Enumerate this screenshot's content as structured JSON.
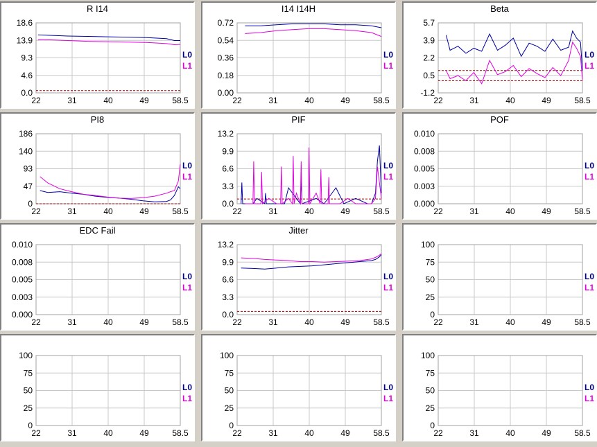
{
  "legend_labels": [
    "L0",
    "L1"
  ],
  "colors": {
    "L0": "#0000a0",
    "L1": "#e000e0",
    "threshold": "#a00000",
    "grid": "#c8c8c8"
  },
  "chart_data": [
    {
      "type": "line",
      "title": "R I14",
      "x_ticks": [
        "22",
        "31",
        "40",
        "49",
        "58.5"
      ],
      "xlim": [
        22,
        58.5
      ],
      "y_ticks": [
        "0.0",
        "4.6",
        "9.3",
        "13.9",
        "18.6"
      ],
      "ylim": [
        0,
        18.6
      ],
      "threshold": 0.6,
      "series": [
        {
          "name": "L0",
          "x": [
            22.5,
            25,
            30,
            35,
            40,
            45,
            50,
            55,
            57,
            58.5
          ],
          "y": [
            15.4,
            15.3,
            15.1,
            15.0,
            14.9,
            14.8,
            14.7,
            14.4,
            13.9,
            13.9
          ]
        },
        {
          "name": "L1",
          "x": [
            22.5,
            25,
            30,
            35,
            40,
            45,
            50,
            55,
            57,
            58.5
          ],
          "y": [
            14.2,
            14.1,
            13.9,
            13.7,
            13.6,
            13.5,
            13.4,
            13.1,
            12.8,
            12.9
          ]
        }
      ]
    },
    {
      "type": "line",
      "title": "I14 I14H",
      "x_ticks": [
        "22",
        "31",
        "40",
        "49",
        "58.5"
      ],
      "xlim": [
        22,
        58.5
      ],
      "y_ticks": [
        "0.00",
        "0.18",
        "0.36",
        "0.54",
        "0.72"
      ],
      "ylim": [
        0,
        0.72
      ],
      "threshold": null,
      "series": [
        {
          "name": "L0",
          "x": [
            24,
            28,
            32,
            36,
            40,
            44,
            48,
            52,
            56,
            58.5
          ],
          "y": [
            0.69,
            0.69,
            0.7,
            0.71,
            0.71,
            0.71,
            0.7,
            0.7,
            0.69,
            0.67
          ]
        },
        {
          "name": "L1",
          "x": [
            24,
            28,
            32,
            36,
            40,
            44,
            48,
            52,
            56,
            58.5
          ],
          "y": [
            0.61,
            0.62,
            0.64,
            0.65,
            0.66,
            0.66,
            0.65,
            0.64,
            0.62,
            0.58
          ]
        }
      ]
    },
    {
      "type": "line",
      "title": "Beta",
      "x_ticks": [
        "22",
        "31",
        "40",
        "49",
        "58.5"
      ],
      "xlim": [
        22,
        58.5
      ],
      "y_ticks": [
        "-1.2",
        "0.5",
        "2.2",
        "3.9",
        "5.7"
      ],
      "ylim": [
        -1.2,
        5.7
      ],
      "threshold": [
        1.0,
        0.0
      ],
      "series": [
        {
          "name": "L0",
          "x": [
            24,
            25,
            27,
            29,
            31,
            33,
            35,
            37,
            39,
            41,
            43,
            45,
            47,
            49,
            51,
            53,
            55,
            56,
            57,
            58,
            58.5
          ],
          "y": [
            4.5,
            3.0,
            3.4,
            2.7,
            3.2,
            2.9,
            4.6,
            3.0,
            3.5,
            4.2,
            2.4,
            3.7,
            3.4,
            2.9,
            4.1,
            3.0,
            3.3,
            4.9,
            4.2,
            3.8,
            1.0
          ]
        },
        {
          "name": "L1",
          "x": [
            24,
            25,
            27,
            29,
            31,
            33,
            35,
            37,
            39,
            41,
            43,
            45,
            47,
            49,
            51,
            53,
            55,
            56,
            57,
            58,
            58.5
          ],
          "y": [
            1.0,
            0.2,
            0.5,
            0.0,
            0.8,
            -0.3,
            2.0,
            0.6,
            0.9,
            1.5,
            0.4,
            1.2,
            0.7,
            0.3,
            1.3,
            0.5,
            2.0,
            3.8,
            3.2,
            2.4,
            0.1
          ]
        }
      ]
    },
    {
      "type": "line",
      "title": "PI8",
      "x_ticks": [
        "22",
        "31",
        "40",
        "49",
        "58.5"
      ],
      "xlim": [
        22,
        58.5
      ],
      "y_ticks": [
        "0",
        "47",
        "93",
        "140",
        "186"
      ],
      "ylim": [
        0,
        186
      ],
      "threshold": 0,
      "series": [
        {
          "name": "L0",
          "x": [
            23,
            25,
            28,
            31,
            34,
            37,
            40,
            43,
            46,
            49,
            52,
            55,
            56,
            57,
            58,
            58.5
          ],
          "y": [
            35,
            30,
            32,
            28,
            25,
            20,
            17,
            15,
            12,
            8,
            5,
            6,
            10,
            22,
            45,
            40
          ]
        },
        {
          "name": "L1",
          "x": [
            23,
            25,
            28,
            31,
            34,
            37,
            40,
            43,
            46,
            49,
            52,
            55,
            56,
            57,
            58,
            58.5
          ],
          "y": [
            72,
            55,
            40,
            32,
            25,
            22,
            18,
            15,
            14,
            16,
            20,
            28,
            32,
            35,
            60,
            105
          ]
        }
      ]
    },
    {
      "type": "line",
      "title": "PIF",
      "x_ticks": [
        "22",
        "31",
        "40",
        "49",
        "58.5"
      ],
      "xlim": [
        22,
        58.5
      ],
      "y_ticks": [
        "0.0",
        "3.3",
        "6.6",
        "9.9",
        "13.2"
      ],
      "ylim": [
        0,
        13.2
      ],
      "threshold": 0.9,
      "series": [
        {
          "name": "L0",
          "x": [
            23,
            23.2,
            23.4,
            26,
            27,
            29,
            29.2,
            29.4,
            31,
            34,
            35,
            38,
            38.2,
            38.4,
            42,
            44,
            47,
            49,
            52,
            55,
            56,
            57,
            57.5,
            58,
            58.5
          ],
          "y": [
            0,
            4,
            0,
            0,
            1,
            0,
            2,
            0,
            0,
            0,
            3,
            0,
            5,
            0,
            1,
            0,
            3,
            0,
            1,
            0,
            0,
            2,
            8,
            11,
            2
          ]
        },
        {
          "name": "L1",
          "x": [
            24,
            26,
            26.2,
            26.4,
            28,
            28.2,
            28.4,
            30,
            32,
            33,
            33.2,
            33.4,
            35,
            36,
            36.2,
            36.4,
            37,
            38,
            38.2,
            38.4,
            40,
            40.2,
            40.4,
            42,
            43,
            43.2,
            43.4,
            45,
            45.2,
            45.4,
            48,
            50,
            52,
            54,
            56,
            57,
            57.5,
            58,
            58.5
          ],
          "y": [
            0,
            0,
            8,
            0,
            0,
            6,
            0,
            1,
            0,
            0,
            7,
            0,
            1,
            0,
            9,
            0,
            2,
            0,
            8,
            0,
            0,
            10.6,
            0,
            2,
            0,
            6.5,
            0,
            0,
            5,
            0,
            0,
            1,
            0,
            0,
            0,
            1,
            7,
            4,
            1
          ]
        }
      ]
    },
    {
      "type": "line",
      "title": "POF",
      "x_ticks": [
        "22",
        "31",
        "40",
        "49",
        "58.5"
      ],
      "xlim": [
        22,
        58.5
      ],
      "y_ticks": [
        "0.000",
        "0.003",
        "0.005",
        "0.008",
        "0.010"
      ],
      "ylim": [
        0,
        0.01
      ],
      "threshold": null,
      "series": []
    },
    {
      "type": "line",
      "title": "EDC Fail",
      "x_ticks": [
        "22",
        "31",
        "40",
        "49",
        "58.5"
      ],
      "xlim": [
        22,
        58.5
      ],
      "y_ticks": [
        "0.000",
        "0.003",
        "0.005",
        "0.008",
        "0.010"
      ],
      "ylim": [
        0,
        0.01
      ],
      "threshold": null,
      "series": []
    },
    {
      "type": "line",
      "title": "Jitter",
      "x_ticks": [
        "22",
        "31",
        "40",
        "49",
        "58.5"
      ],
      "xlim": [
        22,
        58.5
      ],
      "y_ticks": [
        "0.0",
        "3.3",
        "6.6",
        "9.9",
        "13.2"
      ],
      "ylim": [
        0,
        13.2
      ],
      "threshold": 0.6,
      "series": [
        {
          "name": "L0",
          "x": [
            23,
            26,
            29,
            32,
            35,
            38,
            41,
            44,
            47,
            50,
            53,
            56,
            57,
            58,
            58.5
          ],
          "y": [
            8.8,
            8.7,
            8.6,
            8.8,
            9.0,
            9.1,
            9.2,
            9.4,
            9.6,
            9.8,
            10.0,
            10.2,
            10.4,
            10.9,
            11.3
          ]
        },
        {
          "name": "L1",
          "x": [
            23,
            26,
            29,
            32,
            35,
            38,
            41,
            44,
            47,
            50,
            53,
            56,
            57,
            58,
            58.5
          ],
          "y": [
            10.7,
            10.6,
            10.4,
            10.3,
            10.2,
            10.0,
            10.0,
            9.9,
            10.0,
            10.1,
            10.2,
            10.5,
            10.8,
            11.2,
            11.5
          ]
        }
      ]
    },
    {
      "type": "line",
      "title": "",
      "x_ticks": [
        "22",
        "31",
        "40",
        "49",
        "58.5"
      ],
      "xlim": [
        22,
        58.5
      ],
      "y_ticks": [
        "0",
        "25",
        "50",
        "75",
        "100"
      ],
      "ylim": [
        0,
        100
      ],
      "threshold": null,
      "series": []
    },
    {
      "type": "line",
      "title": "",
      "x_ticks": [
        "22",
        "31",
        "40",
        "49",
        "58.5"
      ],
      "xlim": [
        22,
        58.5
      ],
      "y_ticks": [
        "0",
        "25",
        "50",
        "75",
        "100"
      ],
      "ylim": [
        0,
        100
      ],
      "threshold": null,
      "series": []
    },
    {
      "type": "line",
      "title": "",
      "x_ticks": [
        "22",
        "31",
        "40",
        "49",
        "58.5"
      ],
      "xlim": [
        22,
        58.5
      ],
      "y_ticks": [
        "0",
        "25",
        "50",
        "75",
        "100"
      ],
      "ylim": [
        0,
        100
      ],
      "threshold": null,
      "series": []
    },
    {
      "type": "line",
      "title": "",
      "x_ticks": [
        "22",
        "31",
        "40",
        "49",
        "58.5"
      ],
      "xlim": [
        22,
        58.5
      ],
      "y_ticks": [
        "0",
        "25",
        "50",
        "75",
        "100"
      ],
      "ylim": [
        0,
        100
      ],
      "threshold": null,
      "series": []
    }
  ]
}
